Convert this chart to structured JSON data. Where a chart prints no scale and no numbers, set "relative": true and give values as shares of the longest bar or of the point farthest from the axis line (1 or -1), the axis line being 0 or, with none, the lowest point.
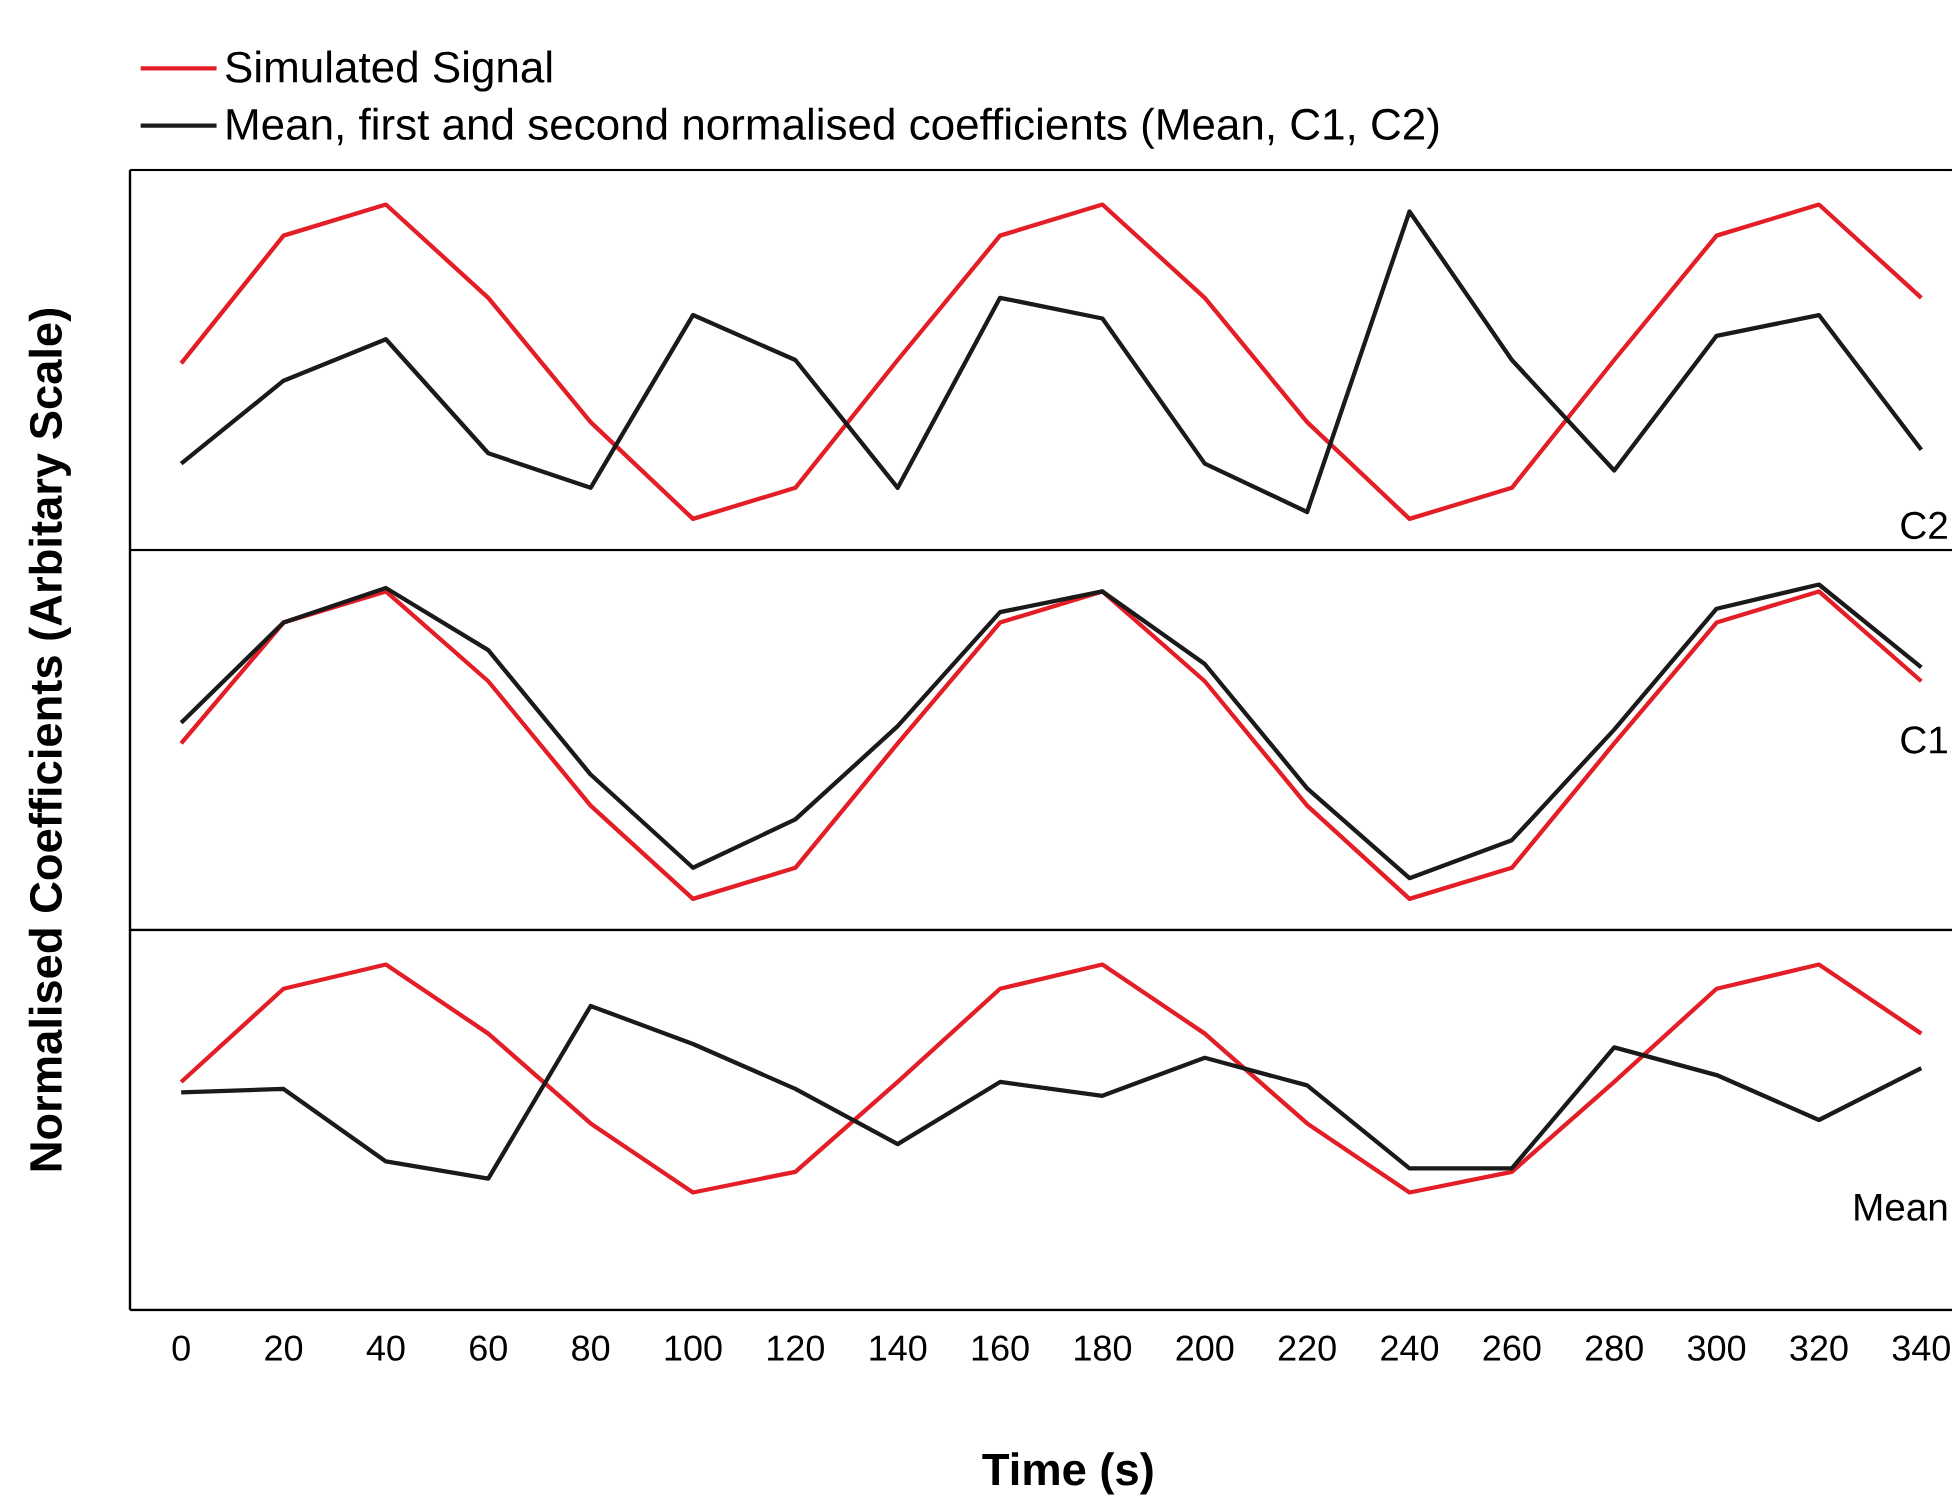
{
  "chart_data": [
    {
      "type": "line",
      "relative": true,
      "x": [
        0,
        20,
        40,
        60,
        80,
        100,
        120,
        140,
        160,
        180,
        200,
        220,
        240,
        260,
        280,
        300,
        320,
        340
      ],
      "xlim": [
        -10,
        346
      ],
      "xticks": [
        0,
        20,
        40,
        60,
        80,
        100,
        120,
        140,
        160,
        180,
        200,
        220,
        240,
        260,
        280,
        300,
        320,
        340
      ],
      "tick_labels": false,
      "legend": "top",
      "series": [
        {
          "name": "Simulated Signal",
          "color": "#e41e26",
          "values": [
            0.54,
            0.91,
            1,
            0.73,
            0.37,
            0.09,
            0.18,
            0.55,
            0.91,
            1,
            0.73,
            0.37,
            0.09,
            0.18,
            0.55,
            0.91,
            1,
            0.73
          ]
        },
        {
          "name": "Mean, first and second normalised coefficients (Mean, C1, C2)",
          "color": "#1a1a1a",
          "values": [
            0.25,
            0.49,
            0.61,
            0.28,
            0.18,
            0.68,
            0.55,
            0.18,
            0.73,
            0.67,
            0.25,
            0.11,
            0.98,
            0.55,
            0.23,
            0.62,
            0.68,
            0.29
          ]
        }
      ],
      "annotations": [
        "C2"
      ]
    },
    {
      "type": "line",
      "relative": true,
      "x": [
        0,
        20,
        40,
        60,
        80,
        100,
        120,
        140,
        160,
        180,
        200,
        220,
        240,
        260,
        280,
        300,
        320,
        340
      ],
      "xlim": [
        -10,
        346
      ],
      "xticks": [
        0,
        20,
        40,
        60,
        80,
        100,
        120,
        140,
        160,
        180,
        200,
        220,
        240,
        260,
        280,
        300,
        320,
        340
      ],
      "tick_labels": false,
      "ylabel": "Normalised Coefficients (Arbitary Scale)",
      "series": [
        {
          "color": "#e41e26",
          "values": [
            0.54,
            0.89,
            0.98,
            0.72,
            0.36,
            0.09,
            0.18,
            0.54,
            0.89,
            0.98,
            0.72,
            0.36,
            0.09,
            0.18,
            0.54,
            0.89,
            0.98,
            0.72
          ]
        },
        {
          "color": "#1a1a1a",
          "values": [
            0.6,
            0.89,
            0.99,
            0.81,
            0.45,
            0.18,
            0.32,
            0.59,
            0.92,
            0.98,
            0.77,
            0.41,
            0.15,
            0.26,
            0.58,
            0.93,
            1,
            0.76
          ]
        }
      ],
      "annotations": [
        "C1"
      ]
    },
    {
      "type": "line",
      "relative": true,
      "x": [
        0,
        20,
        40,
        60,
        80,
        100,
        120,
        140,
        160,
        180,
        200,
        220,
        240,
        260,
        280,
        300,
        320,
        340
      ],
      "xlim": [
        -10,
        346
      ],
      "xticks": [
        0,
        20,
        40,
        60,
        80,
        100,
        120,
        140,
        160,
        180,
        200,
        220,
        240,
        260,
        280,
        300,
        320,
        340
      ],
      "tick_labels": "x",
      "xlabel": "Time (s)",
      "series": [
        {
          "color": "#e41e26",
          "values": [
            0.66,
            0.93,
            1,
            0.8,
            0.54,
            0.34,
            0.4,
            0.66,
            0.93,
            1,
            0.8,
            0.54,
            0.34,
            0.4,
            0.66,
            0.93,
            1,
            0.8
          ]
        },
        {
          "color": "#1a1a1a",
          "values": [
            0.63,
            0.64,
            0.43,
            0.38,
            0.88,
            0.77,
            0.64,
            0.48,
            0.66,
            0.62,
            0.73,
            0.65,
            0.41,
            0.41,
            0.76,
            0.68,
            0.55,
            0.7
          ]
        }
      ],
      "annotations": [
        "Mean"
      ]
    }
  ]
}
